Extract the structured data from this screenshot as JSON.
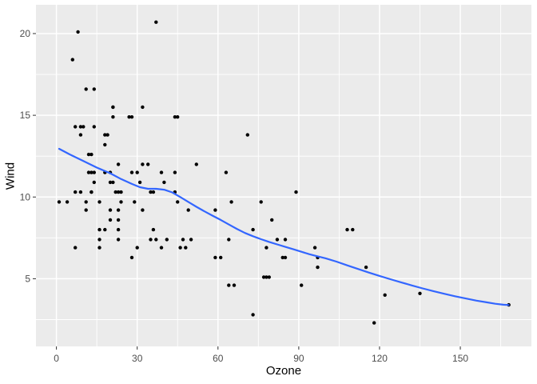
{
  "figure": {
    "background": "#FFFFFF"
  },
  "chart_data": {
    "type": "scatter",
    "title": "",
    "xlabel": "Ozone",
    "ylabel": "Wind",
    "xlim": [
      -7.6,
      176.4
    ],
    "ylim": [
      0.86,
      21.76
    ],
    "grid": true,
    "legend": false,
    "x_ticks": [
      0,
      30,
      60,
      90,
      120,
      150
    ],
    "x_tick_labels": [
      "0",
      "30",
      "60",
      "90",
      "120",
      "150"
    ],
    "y_ticks": [
      5,
      10,
      15,
      20
    ],
    "y_tick_labels": [
      "5",
      "10",
      "15",
      "20"
    ],
    "x_minor_ticks": [
      15,
      45,
      75,
      105,
      135,
      165
    ],
    "y_minor_ticks": [
      2.5,
      7.5,
      12.5,
      17.5
    ],
    "points": [
      [
        41,
        7.4
      ],
      [
        36,
        8
      ],
      [
        12,
        12.6
      ],
      [
        18,
        11.5
      ],
      [
        28,
        14.9
      ],
      [
        23,
        8.6
      ],
      [
        19,
        13.8
      ],
      [
        8,
        20.1
      ],
      [
        7,
        6.9
      ],
      [
        16,
        9.7
      ],
      [
        11,
        9.2
      ],
      [
        14,
        10.9
      ],
      [
        18,
        13.2
      ],
      [
        14,
        11.5
      ],
      [
        34,
        12
      ],
      [
        6,
        18.4
      ],
      [
        30,
        11.5
      ],
      [
        11,
        9.7
      ],
      [
        1,
        9.7
      ],
      [
        11,
        16.6
      ],
      [
        4,
        9.7
      ],
      [
        32,
        12
      ],
      [
        23,
        12
      ],
      [
        45,
        14.9
      ],
      [
        115,
        5.7
      ],
      [
        37,
        7.4
      ],
      [
        29,
        9.7
      ],
      [
        71,
        13.8
      ],
      [
        39,
        11.5
      ],
      [
        23,
        8
      ],
      [
        21,
        14.9
      ],
      [
        37,
        20.7
      ],
      [
        20,
        9.2
      ],
      [
        12,
        11.5
      ],
      [
        13,
        10.3
      ],
      [
        135,
        4.1
      ],
      [
        49,
        9.2
      ],
      [
        32,
        9.2
      ],
      [
        64,
        4.6
      ],
      [
        40,
        10.9
      ],
      [
        77,
        5.1
      ],
      [
        97,
        6.3
      ],
      [
        97,
        5.7
      ],
      [
        85,
        7.4
      ],
      [
        10,
        14.3
      ],
      [
        27,
        14.9
      ],
      [
        7,
        14.3
      ],
      [
        48,
        6.9
      ],
      [
        35,
        10.3
      ],
      [
        61,
        6.3
      ],
      [
        79,
        5.1
      ],
      [
        63,
        11.5
      ],
      [
        16,
        6.9
      ],
      [
        80,
        8.6
      ],
      [
        108,
        8
      ],
      [
        20,
        8.6
      ],
      [
        52,
        12
      ],
      [
        82,
        7.4
      ],
      [
        50,
        7.4
      ],
      [
        64,
        7.4
      ],
      [
        59,
        9.2
      ],
      [
        39,
        6.9
      ],
      [
        9,
        13.8
      ],
      [
        16,
        7.4
      ],
      [
        78,
        6.9
      ],
      [
        35,
        7.4
      ],
      [
        66,
        4.6
      ],
      [
        122,
        4
      ],
      [
        89,
        10.3
      ],
      [
        110,
        8
      ],
      [
        44,
        11.5
      ],
      [
        28,
        11.5
      ],
      [
        65,
        9.7
      ],
      [
        22,
        10.3
      ],
      [
        59,
        6.3
      ],
      [
        23,
        7.4
      ],
      [
        31,
        10.9
      ],
      [
        44,
        10.3
      ],
      [
        21,
        15.5
      ],
      [
        9,
        14.3
      ],
      [
        45,
        9.7
      ],
      [
        168,
        3.4
      ],
      [
        73,
        8
      ],
      [
        76,
        9.7
      ],
      [
        118,
        2.3
      ],
      [
        84,
        6.3
      ],
      [
        85,
        6.3
      ],
      [
        96,
        6.9
      ],
      [
        78,
        5.1
      ],
      [
        73,
        2.8
      ],
      [
        91,
        4.6
      ],
      [
        47,
        7.4
      ],
      [
        32,
        15.5
      ],
      [
        20,
        10.9
      ],
      [
        23,
        10.3
      ],
      [
        21,
        10.9
      ],
      [
        24,
        9.7
      ],
      [
        44,
        14.9
      ],
      [
        21,
        15.5
      ],
      [
        28,
        6.3
      ],
      [
        9,
        10.3
      ],
      [
        13,
        11.5
      ],
      [
        46,
        6.9
      ],
      [
        18,
        13.8
      ],
      [
        13,
        10.3
      ],
      [
        24,
        10.3
      ],
      [
        16,
        8
      ],
      [
        13,
        12.6
      ],
      [
        23,
        9.2
      ],
      [
        36,
        10.3
      ],
      [
        7,
        10.3
      ],
      [
        14,
        16.6
      ],
      [
        30,
        6.9
      ],
      [
        14,
        14.3
      ],
      [
        18,
        8
      ],
      [
        20,
        11.5
      ]
    ],
    "smooth_line": [
      [
        1,
        12.95
      ],
      [
        5,
        12.6
      ],
      [
        10,
        12.2
      ],
      [
        15,
        11.8
      ],
      [
        20,
        11.45
      ],
      [
        24,
        11.1
      ],
      [
        28,
        10.8
      ],
      [
        31,
        10.6
      ],
      [
        34,
        10.5
      ],
      [
        37,
        10.5
      ],
      [
        40,
        10.45
      ],
      [
        43,
        10.28
      ],
      [
        46,
        10.0
      ],
      [
        49,
        9.7
      ],
      [
        52,
        9.4
      ],
      [
        55,
        9.12
      ],
      [
        58,
        8.86
      ],
      [
        61,
        8.6
      ],
      [
        64,
        8.32
      ],
      [
        67,
        8.05
      ],
      [
        70,
        7.8
      ],
      [
        73,
        7.6
      ],
      [
        76,
        7.42
      ],
      [
        79,
        7.25
      ],
      [
        82,
        7.1
      ],
      [
        85,
        6.95
      ],
      [
        88,
        6.8
      ],
      [
        91,
        6.65
      ],
      [
        94,
        6.5
      ],
      [
        97,
        6.37
      ],
      [
        100,
        6.25
      ],
      [
        104,
        6.05
      ],
      [
        108,
        5.82
      ],
      [
        112,
        5.6
      ],
      [
        116,
        5.38
      ],
      [
        120,
        5.17
      ],
      [
        124,
        4.97
      ],
      [
        128,
        4.78
      ],
      [
        132,
        4.59
      ],
      [
        136,
        4.41
      ],
      [
        140,
        4.24
      ],
      [
        144,
        4.08
      ],
      [
        148,
        3.93
      ],
      [
        152,
        3.79
      ],
      [
        156,
        3.66
      ],
      [
        160,
        3.55
      ],
      [
        163,
        3.47
      ],
      [
        166,
        3.41
      ],
      [
        168,
        3.39
      ]
    ],
    "colors": {
      "panel_background": "#EBEBEB",
      "grid": "#FFFFFF",
      "point": "#000000",
      "smooth_line": "#3366FF",
      "tick_mark": "#333333",
      "tick_label": "#4D4D4D",
      "axis_title": "#000000"
    },
    "point_radius": 2.2,
    "line_width": 2.2
  }
}
